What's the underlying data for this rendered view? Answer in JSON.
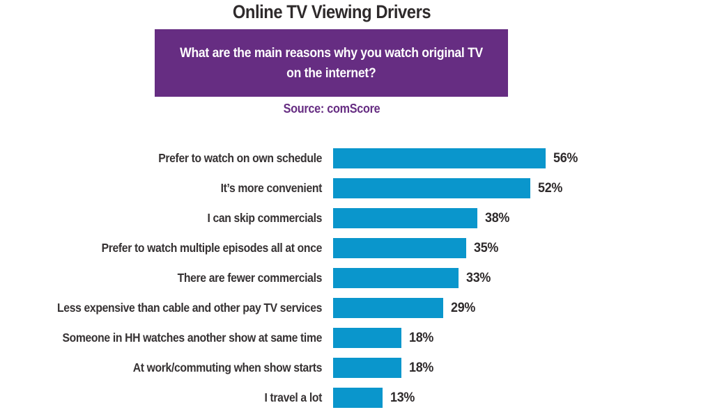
{
  "page": {
    "title": "Online TV Viewing Drivers"
  },
  "banner": {
    "question": "What are the main reasons why you watch original TV on the internet?",
    "question_lines": [
      "What are the main reasons why you watch original TV",
      "on the internet?"
    ]
  },
  "source": {
    "label": "Source: comScore"
  },
  "colors": {
    "banner_purple": "#662d82",
    "bar_blue": "#0a96cc",
    "text_dark": "#2e2a2b"
  },
  "chart_data": {
    "type": "bar",
    "orientation": "horizontal",
    "title": "Online TV Viewing Drivers",
    "subtitle": "What are the main reasons why you watch original TV on the internet?",
    "source": "Source: comScore",
    "unit": "%",
    "categories": [
      "Prefer to watch on own schedule",
      "It’s more convenient",
      "I can skip commercials",
      "Prefer to watch multiple episodes all at once",
      "There are fewer commercials",
      "Less expensive than cable and other pay TV services",
      "Someone in HH watches another show at same time",
      "At work/commuting when show starts",
      "I travel a lot"
    ],
    "values": [
      56,
      52,
      38,
      35,
      33,
      29,
      18,
      18,
      13
    ],
    "value_labels": [
      "56%",
      "52%",
      "38%",
      "35%",
      "33%",
      "29%",
      "18%",
      "18%",
      "13%"
    ],
    "xlim": [
      0,
      60
    ],
    "grid": false,
    "legend": false,
    "bar_color": "#0a96cc"
  }
}
